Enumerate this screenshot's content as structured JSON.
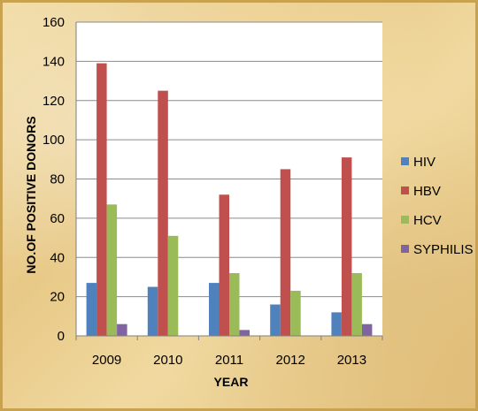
{
  "chart_data": {
    "type": "bar",
    "title": "",
    "xlabel": "YEAR",
    "ylabel": "NO.OF POSITIVE DONORS",
    "ylim": [
      0,
      160
    ],
    "ytick_step": 20,
    "categories": [
      "2009",
      "2010",
      "2011",
      "2012",
      "2013"
    ],
    "series": [
      {
        "name": "HIV",
        "color": "#4f81bd",
        "values": [
          27,
          25,
          27,
          16,
          12
        ]
      },
      {
        "name": "HBV",
        "color": "#c0504d",
        "values": [
          139,
          125,
          72,
          85,
          91
        ]
      },
      {
        "name": "HCV",
        "color": "#9bbb59",
        "values": [
          67,
          51,
          32,
          23,
          32
        ]
      },
      {
        "name": "SYPHILIS",
        "color": "#8064a2",
        "values": [
          6,
          0,
          3,
          0,
          6
        ]
      }
    ],
    "grid": true,
    "legend_position": "right"
  }
}
